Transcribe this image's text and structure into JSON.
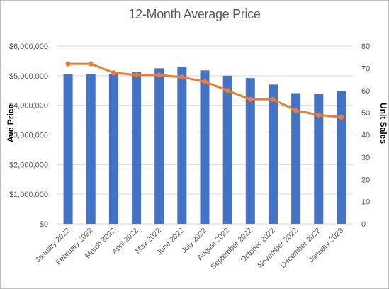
{
  "chart_data": {
    "type": "bar",
    "title": "12-Month Average Price",
    "categories": [
      "January 2022",
      "February 2022",
      "March 2022",
      "April 2022",
      "May 2022",
      "June 2022",
      "July 2022",
      "August 2022",
      "September 2022",
      "October 2022",
      "November 2022",
      "December 2022",
      "January 2023"
    ],
    "series": [
      {
        "name": "Ave Price",
        "type": "bar",
        "axis": "left",
        "color": "#4472c4",
        "values": [
          5060000,
          5060000,
          5060000,
          5120000,
          5250000,
          5300000,
          5180000,
          5000000,
          4920000,
          4700000,
          4410000,
          4390000,
          4480000
        ]
      },
      {
        "name": "Unit Sales",
        "type": "line",
        "axis": "right",
        "color": "#ed7d31",
        "values": [
          72,
          72,
          68,
          67,
          67,
          66,
          64,
          60,
          56,
          56,
          51,
          49,
          48
        ]
      }
    ],
    "y_left": {
      "label": "Ave Price",
      "ylim": [
        0,
        6000000
      ],
      "ticks": [
        "$0",
        "$1,000,000",
        "$2,000,000",
        "$3,000,000",
        "$4,000,000",
        "$5,000,000",
        "$6,000,000"
      ]
    },
    "y_right": {
      "label": "Unit Sales",
      "ylim": [
        0,
        80
      ],
      "ticks": [
        "0",
        "10",
        "20",
        "30",
        "40",
        "50",
        "60",
        "70",
        "80"
      ]
    },
    "grid": true,
    "legend": "none"
  }
}
